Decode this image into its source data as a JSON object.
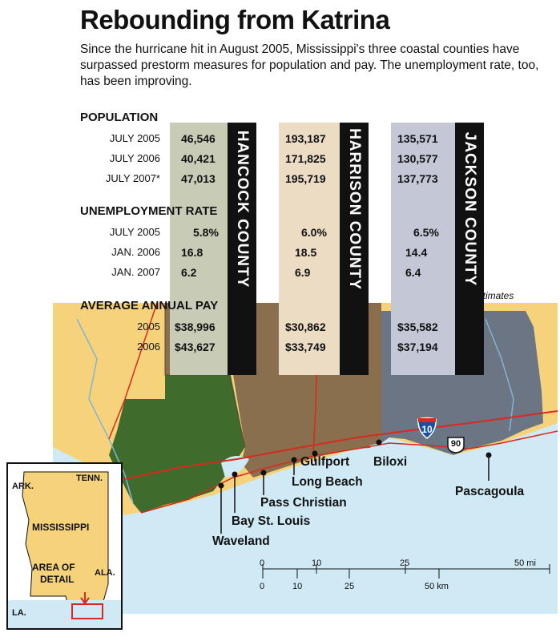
{
  "title": "Rebounding from Katrina",
  "subtitle": "Since the hurricane hit in August 2005, Mississippi's three coastal counties have surpassed prestorm measures for population and pay. The unemployment rate, too, has been improving.",
  "sections": {
    "population": "POPULATION",
    "unemployment": "UNEMPLOYMENT RATE",
    "pay": "AVERAGE ANNUAL PAY"
  },
  "row_labels": {
    "population": [
      "JULY 2005",
      "JULY 2006",
      "JULY 2007*"
    ],
    "unemployment": [
      "JULY 2005",
      "JAN. 2006",
      "JAN. 2007"
    ],
    "pay": [
      "2005",
      "2006"
    ]
  },
  "counties": [
    {
      "name": "HANCOCK COUNTY",
      "population": [
        "46,546",
        "40,421",
        "47,013"
      ],
      "unemployment": [
        "5.8%",
        "16.8",
        "6.2"
      ],
      "pay": [
        "$38,996",
        "$43,627"
      ],
      "color": "#c8ccb6"
    },
    {
      "name": "HARRISON COUNTY",
      "population": [
        "193,187",
        "171,825",
        "195,719"
      ],
      "unemployment": [
        "6.0%",
        "18.5",
        "6.9"
      ],
      "pay": [
        "$30,862",
        "$33,749"
      ],
      "color": "#ecdcc4"
    },
    {
      "name": "JACKSON COUNTY",
      "population": [
        "135,571",
        "130,577",
        "137,773"
      ],
      "unemployment": [
        "6.5%",
        "14.4",
        "6.4"
      ],
      "pay": [
        "$35,582",
        "$37,194"
      ],
      "color": "#c4c8d6"
    }
  ],
  "estimates_note": "*Estimates",
  "places": {
    "gulfport": "Gulfport",
    "biloxi": "Biloxi",
    "long_beach": "Long Beach",
    "pass_christian": "Pass Christian",
    "bay_st_louis": "Bay St. Louis",
    "waveland": "Waveland",
    "pascagoula": "Pascagoula"
  },
  "highways": {
    "interstate": "10",
    "us_route": "90"
  },
  "inset": {
    "ark": "ARK.",
    "tenn": "TENN.",
    "state": "MISSISSIPPI",
    "area_of_detail_1": "AREA OF",
    "area_of_detail_2": "DETAIL",
    "ala": "ALA.",
    "la": "LA."
  },
  "scale": {
    "mi_ticks": [
      "0",
      "10",
      "25",
      "50 mi"
    ],
    "km_ticks": [
      "0",
      "10",
      "25",
      "50 km"
    ]
  },
  "colors": {
    "water": "#cfe9f5",
    "hancock_land": "#3f6b2c",
    "harrison_land": "#8a6f4e",
    "jackson_land": "#6b7584",
    "outside_land": "#f6d27a",
    "roads": "#d62b1e"
  }
}
